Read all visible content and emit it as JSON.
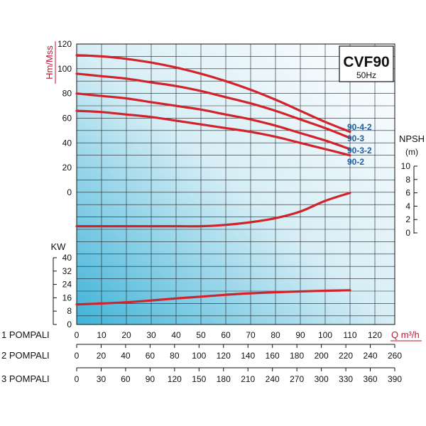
{
  "chart_data": {
    "type": "line",
    "title": "CVF90",
    "subtitle": "50Hz",
    "x": [
      0,
      10,
      20,
      30,
      40,
      50,
      60,
      70,
      80,
      90,
      100,
      110
    ],
    "x_axes": [
      {
        "name": "1 POMPALI",
        "ticks": [
          0,
          10,
          20,
          30,
          40,
          50,
          60,
          70,
          80,
          90,
          100,
          110,
          120
        ],
        "unit_label": "Q m³/h"
      },
      {
        "name": "2 POMPALI",
        "ticks": [
          0,
          20,
          40,
          60,
          80,
          100,
          120,
          140,
          160,
          180,
          200,
          220,
          240,
          260
        ]
      },
      {
        "name": "3 POMPALI",
        "ticks": [
          0,
          30,
          60,
          90,
          120,
          150,
          180,
          210,
          240,
          270,
          300,
          330,
          360,
          390
        ]
      }
    ],
    "head": {
      "ylabel": "Hm/Mss",
      "ylim": [
        0,
        120
      ],
      "ticks": [
        0,
        20,
        40,
        60,
        80,
        100,
        120
      ],
      "series": [
        {
          "name": "90-4-2",
          "x": [
            0,
            10,
            20,
            30,
            40,
            50,
            60,
            70,
            80,
            90,
            100,
            110
          ],
          "values": [
            111,
            110,
            108,
            105,
            101,
            96,
            90,
            83,
            75,
            66,
            57,
            49
          ]
        },
        {
          "name": "90-3",
          "x": [
            0,
            10,
            20,
            30,
            40,
            50,
            60,
            70,
            80,
            90,
            100,
            110
          ],
          "values": [
            96,
            94,
            92,
            89,
            86,
            82,
            77,
            72,
            66,
            59,
            52,
            44
          ]
        },
        {
          "name": "90-3-2",
          "x": [
            0,
            10,
            20,
            30,
            40,
            50,
            60,
            70,
            80,
            90,
            100,
            110
          ],
          "values": [
            80,
            78,
            76,
            73,
            70,
            67,
            63,
            59,
            54,
            48,
            42,
            35
          ]
        },
        {
          "name": "90-2",
          "x": [
            0,
            10,
            20,
            30,
            40,
            50,
            60,
            70,
            80,
            90,
            100,
            110
          ],
          "values": [
            66,
            65,
            63,
            61,
            58,
            55,
            52,
            49,
            45,
            40,
            35,
            30
          ]
        }
      ]
    },
    "npsh": {
      "ylabel": "NPSH",
      "unit": "(m)",
      "ylim": [
        0,
        10
      ],
      "ticks": [
        0,
        2,
        4,
        6,
        8,
        10
      ],
      "x": [
        0,
        10,
        20,
        30,
        40,
        50,
        60,
        70,
        80,
        90,
        100,
        110
      ],
      "values": [
        1.0,
        1.0,
        1.0,
        1.0,
        1.0,
        1.0,
        1.2,
        1.6,
        2.2,
        3.2,
        4.8,
        6.0
      ]
    },
    "power": {
      "ylabel": "KW",
      "ylim": [
        0,
        40
      ],
      "ticks": [
        0,
        8,
        16,
        24,
        32,
        40
      ],
      "x": [
        0,
        10,
        20,
        30,
        40,
        50,
        60,
        70,
        80,
        90,
        100,
        110
      ],
      "values": [
        12,
        12.6,
        13.3,
        14.4,
        15.6,
        16.7,
        17.8,
        18.7,
        19.3,
        19.8,
        20.2,
        20.5
      ]
    },
    "grid": true
  },
  "labels": {
    "row1": "1 POMPALI",
    "row2": "2 POMPALI",
    "row3": "3 POMPALI",
    "q_unit": "Q m³/h",
    "head_axis": "Hm/Mss",
    "npsh_axis": "NPSH",
    "npsh_unit": "(m)",
    "kw_axis": "KW",
    "model": "CVF90",
    "freq": "50Hz"
  },
  "colors": {
    "curve": "#d2232a",
    "label_blue": "#1f5fa0",
    "axis_red": "#c8102e",
    "gradient_start": "#3fb3d8",
    "gradient_end": "#ffffff"
  }
}
